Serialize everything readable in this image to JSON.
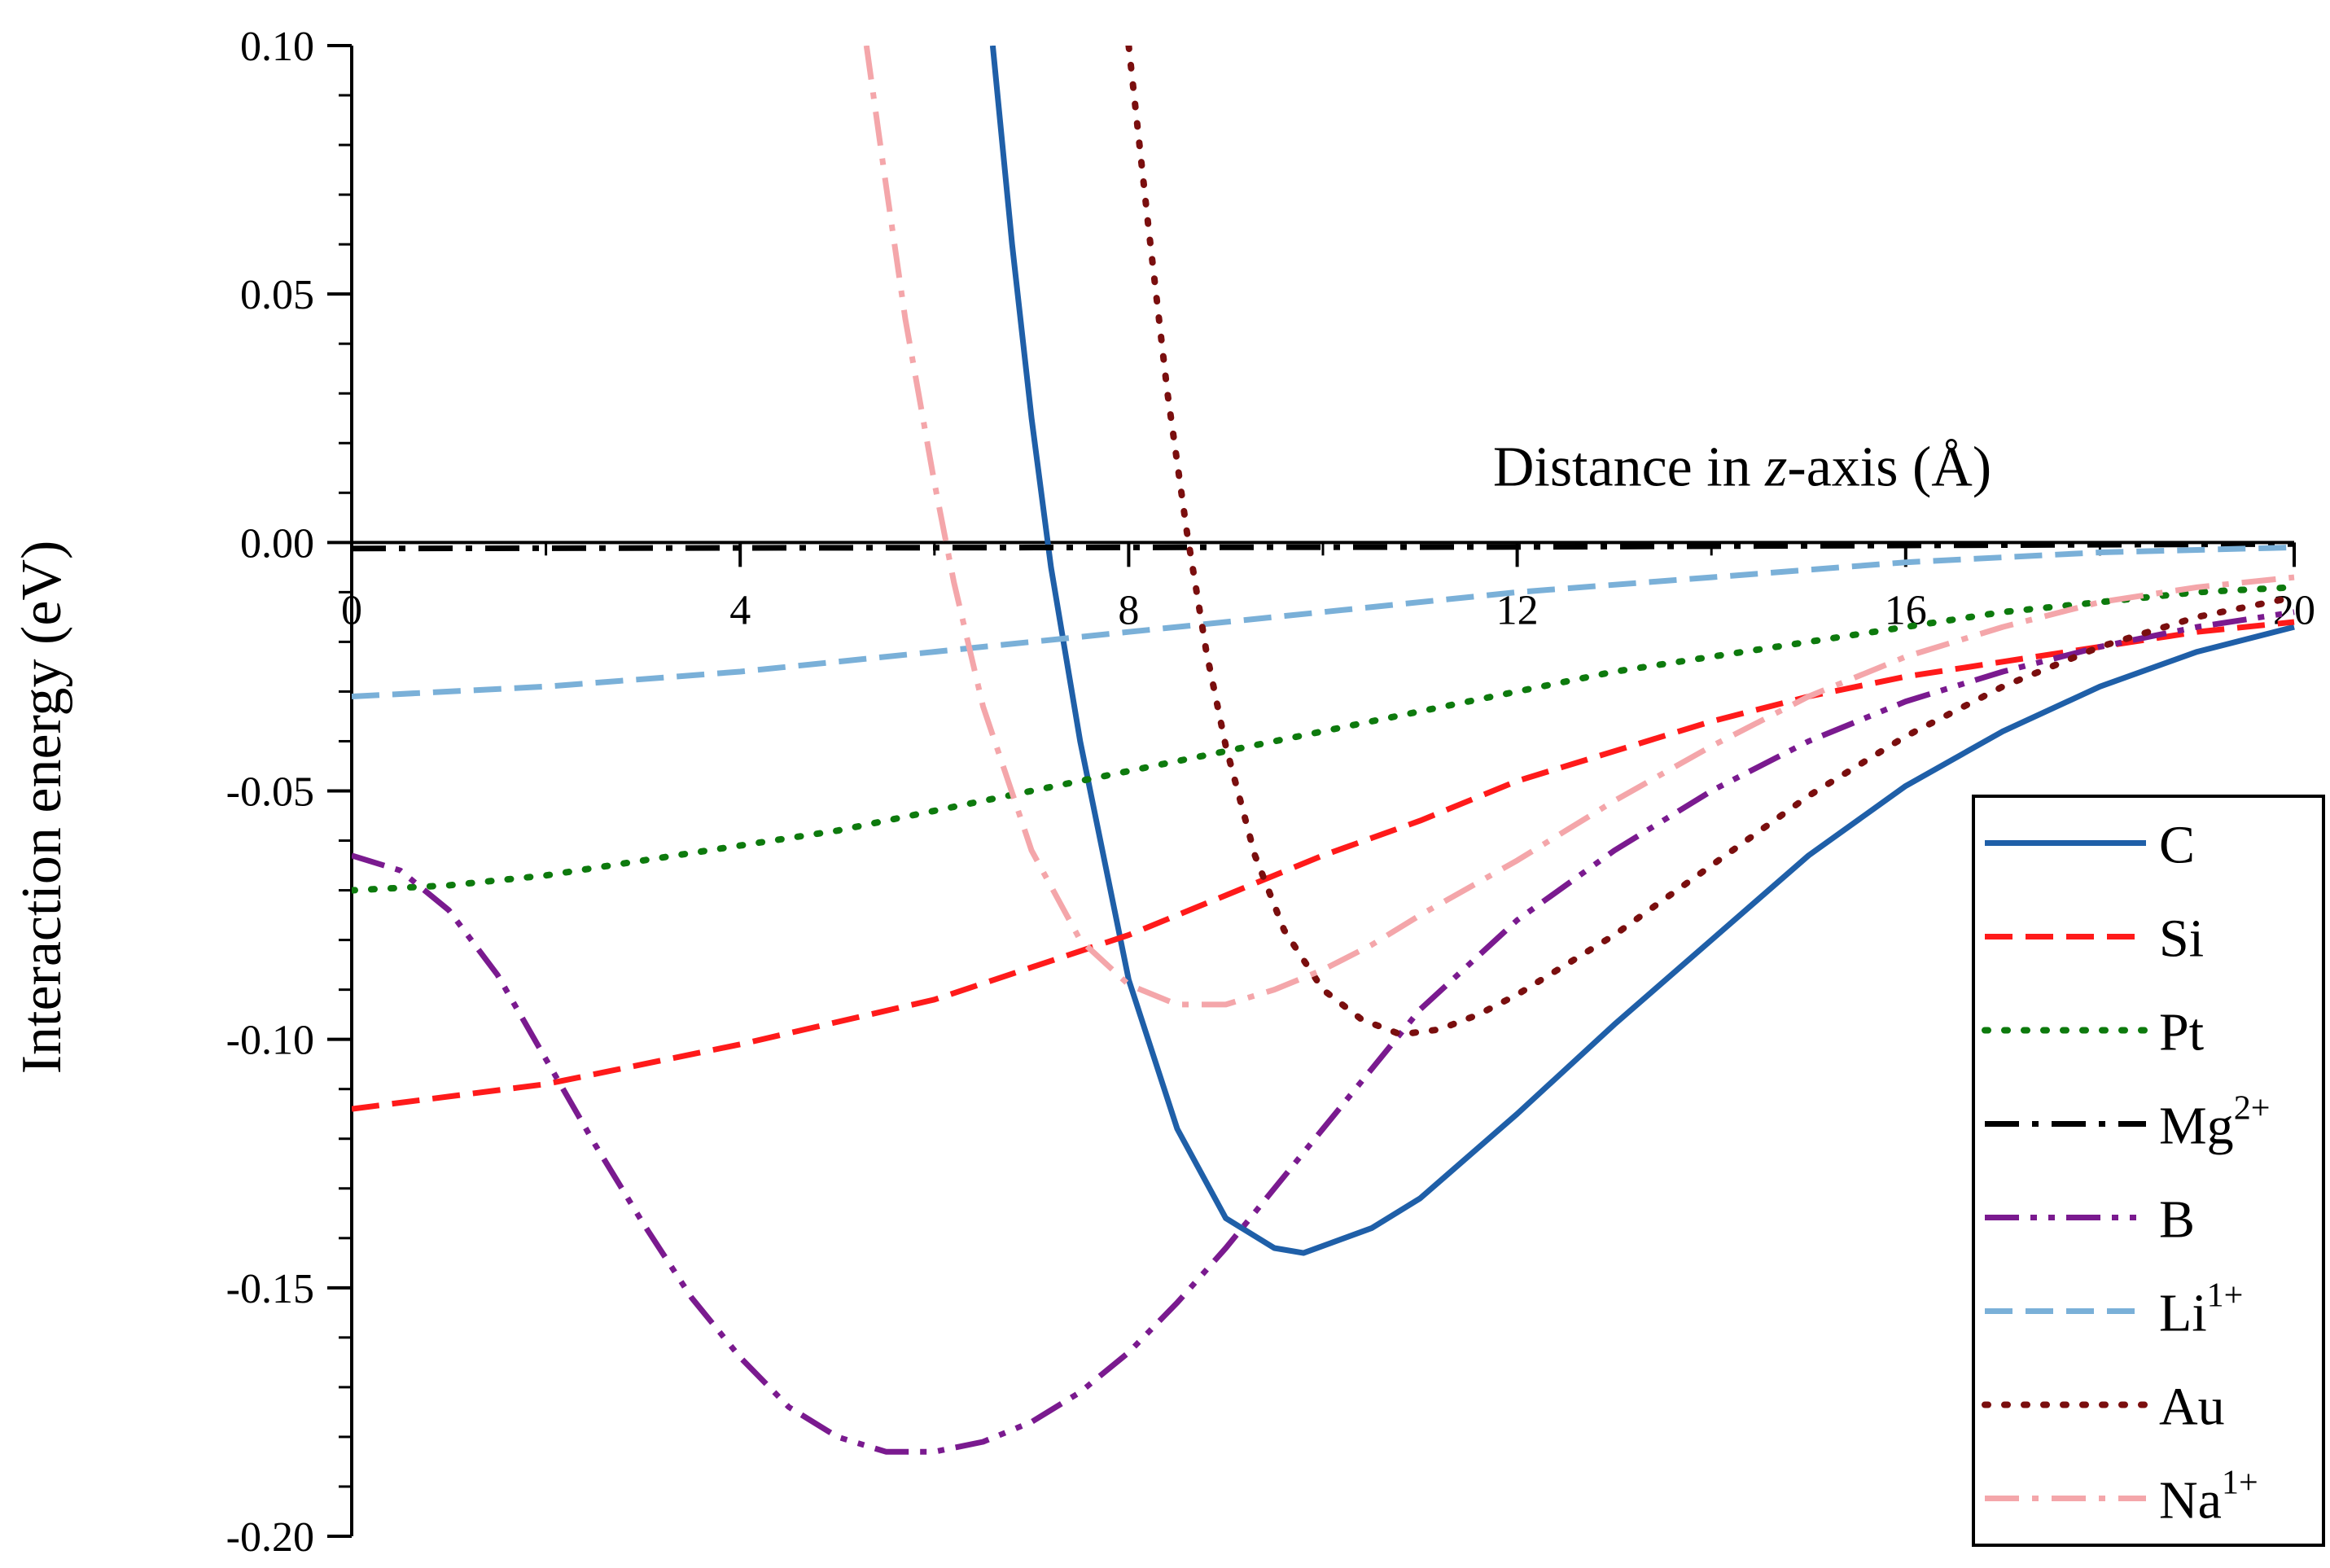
{
  "chart_data": {
    "type": "line",
    "title": "",
    "xlabel_parts": {
      "prefix": "Distance in ",
      "italic": "z",
      "suffix": "-axis (Å)"
    },
    "ylabel": "Interaction energy (eV)",
    "xlim": [
      0,
      20
    ],
    "ylim": [
      -0.2,
      0.1
    ],
    "x_ticks": [
      0,
      4,
      8,
      12,
      16,
      20
    ],
    "x_tick_labels": [
      "0",
      "4",
      "8",
      "12",
      "16",
      "20"
    ],
    "y_ticks": [
      -0.2,
      -0.15,
      -0.1,
      -0.05,
      0.0,
      0.05,
      0.1
    ],
    "y_tick_labels": [
      "-0.20",
      "-0.15",
      "-0.10",
      "-0.05",
      "0.00",
      "0.05",
      "0.10"
    ],
    "x_axis_at_y": 0,
    "grid": false,
    "legend_position": "bottom-right",
    "series": [
      {
        "name": "C",
        "name_sup": "",
        "color": "#1f5fa8",
        "style": "solid",
        "x": [
          6.6,
          6.8,
          7.0,
          7.2,
          7.5,
          8.0,
          8.5,
          9.0,
          9.5,
          9.8,
          10.5,
          11.0,
          12.0,
          13.0,
          14.0,
          15.0,
          16.0,
          17.0,
          18.0,
          19.0,
          20.0
        ],
        "y": [
          0.1,
          0.06,
          0.025,
          -0.005,
          -0.04,
          -0.088,
          -0.118,
          -0.136,
          -0.142,
          -0.143,
          -0.138,
          -0.132,
          -0.115,
          -0.097,
          -0.08,
          -0.063,
          -0.049,
          -0.038,
          -0.029,
          -0.022,
          -0.017
        ]
      },
      {
        "name": "Si",
        "name_sup": "",
        "color": "#ff1a1a",
        "style": "dashed",
        "x": [
          0,
          2,
          4,
          6,
          8,
          9,
          10,
          11,
          12,
          13,
          14,
          15,
          16,
          17,
          18,
          19,
          20
        ],
        "y": [
          -0.114,
          -0.109,
          -0.101,
          -0.092,
          -0.079,
          -0.071,
          -0.063,
          -0.056,
          -0.048,
          -0.042,
          -0.036,
          -0.031,
          -0.027,
          -0.024,
          -0.021,
          -0.018,
          -0.016
        ]
      },
      {
        "name": "Pt",
        "name_sup": "",
        "color": "#0d7a0d",
        "style": "dotted",
        "x": [
          0,
          1,
          2,
          3,
          4,
          5,
          6,
          7,
          8,
          9,
          10,
          11,
          12,
          13,
          14,
          15,
          16,
          17,
          18,
          19,
          20
        ],
        "y": [
          -0.07,
          -0.069,
          -0.067,
          -0.064,
          -0.061,
          -0.058,
          -0.054,
          -0.05,
          -0.046,
          -0.042,
          -0.038,
          -0.034,
          -0.03,
          -0.026,
          -0.023,
          -0.02,
          -0.017,
          -0.014,
          -0.012,
          -0.01,
          -0.009
        ]
      },
      {
        "name": "Mg",
        "name_sup": "2+",
        "color": "#000000",
        "style": "dashdot",
        "x": [
          0,
          4,
          8,
          12,
          16,
          20
        ],
        "y": [
          -0.0012,
          -0.0011,
          -0.001,
          -0.0009,
          -0.0006,
          -0.0003
        ]
      },
      {
        "name": "B",
        "name_sup": "",
        "color": "#7a1a8f",
        "style": "dashdotdot",
        "x": [
          0,
          0.5,
          1.0,
          1.5,
          2.0,
          2.5,
          3.0,
          3.5,
          4.0,
          4.5,
          5.0,
          5.5,
          6.0,
          6.5,
          7.0,
          7.5,
          8.0,
          8.5,
          9.0,
          9.5,
          10.0,
          10.5,
          11.0,
          12.0,
          13.0,
          14.0,
          15.0,
          16.0,
          17.0,
          18.0,
          19.0,
          20.0
        ],
        "y": [
          -0.063,
          -0.066,
          -0.074,
          -0.087,
          -0.104,
          -0.121,
          -0.137,
          -0.152,
          -0.164,
          -0.174,
          -0.18,
          -0.183,
          -0.183,
          -0.181,
          -0.177,
          -0.171,
          -0.163,
          -0.153,
          -0.142,
          -0.13,
          -0.118,
          -0.106,
          -0.094,
          -0.076,
          -0.062,
          -0.05,
          -0.04,
          -0.032,
          -0.026,
          -0.021,
          -0.017,
          -0.014
        ]
      },
      {
        "name": "Li",
        "name_sup": "1+",
        "color": "#7ab0d8",
        "style": "dashed",
        "x": [
          0,
          2,
          4,
          6,
          8,
          10,
          12,
          14,
          16,
          18,
          20
        ],
        "y": [
          -0.031,
          -0.029,
          -0.026,
          -0.022,
          -0.018,
          -0.014,
          -0.01,
          -0.007,
          -0.004,
          -0.002,
          -0.001
        ]
      },
      {
        "name": "Au",
        "name_sup": "",
        "color": "#7a0e0e",
        "style": "dotted",
        "x": [
          8.0,
          8.2,
          8.4,
          8.6,
          8.8,
          9.0,
          9.3,
          9.6,
          10.0,
          10.4,
          10.8,
          11.2,
          11.6,
          12.0,
          13.0,
          14.0,
          15.0,
          16.0,
          17.0,
          18.0,
          19.0,
          20.0
        ],
        "y": [
          0.1,
          0.064,
          0.03,
          0.002,
          -0.022,
          -0.041,
          -0.063,
          -0.078,
          -0.09,
          -0.096,
          -0.099,
          -0.098,
          -0.095,
          -0.091,
          -0.079,
          -0.065,
          -0.051,
          -0.039,
          -0.029,
          -0.021,
          -0.015,
          -0.011
        ]
      },
      {
        "name": "Na",
        "name_sup": "1+",
        "color": "#f4a6aa",
        "style": "dashdot",
        "x": [
          5.3,
          5.5,
          5.7,
          6.0,
          6.2,
          6.5,
          7.0,
          7.5,
          8.0,
          8.5,
          9.0,
          9.5,
          10.0,
          10.5,
          11.0,
          12.0,
          13.0,
          14.0,
          15.0,
          16.0,
          17.0,
          18.0,
          19.0,
          20.0
        ],
        "y": [
          0.1,
          0.072,
          0.045,
          0.012,
          -0.008,
          -0.033,
          -0.062,
          -0.08,
          -0.089,
          -0.093,
          -0.093,
          -0.09,
          -0.086,
          -0.081,
          -0.075,
          -0.064,
          -0.052,
          -0.041,
          -0.031,
          -0.023,
          -0.017,
          -0.012,
          -0.009,
          -0.007
        ]
      }
    ]
  }
}
